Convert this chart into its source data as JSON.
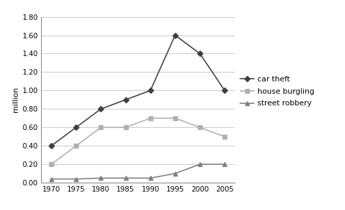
{
  "years": [
    1970,
    1975,
    1980,
    1985,
    1990,
    1995,
    2000,
    2005
  ],
  "car_theft": [
    0.4,
    0.6,
    0.8,
    0.9,
    1.0,
    1.6,
    1.4,
    1.0
  ],
  "house_burgling": [
    0.2,
    0.4,
    0.6,
    0.6,
    0.7,
    0.7,
    0.6,
    0.5
  ],
  "street_robbery": [
    0.04,
    0.04,
    0.05,
    0.05,
    0.05,
    0.1,
    0.2,
    0.2
  ],
  "car_theft_color": "#404040",
  "house_burgling_color": "#b0b0b0",
  "street_robbery_color": "#808080",
  "ylabel": "million",
  "ylim": [
    0.0,
    1.8
  ],
  "yticks": [
    0.0,
    0.2,
    0.4,
    0.6,
    0.8,
    1.0,
    1.2,
    1.4,
    1.6,
    1.8
  ],
  "legend_labels": [
    "car theft",
    "house burgling",
    "street robbery"
  ],
  "background_color": "#ffffff",
  "plot_bg_color": "#ffffff",
  "grid_color": "#c8c8c8"
}
